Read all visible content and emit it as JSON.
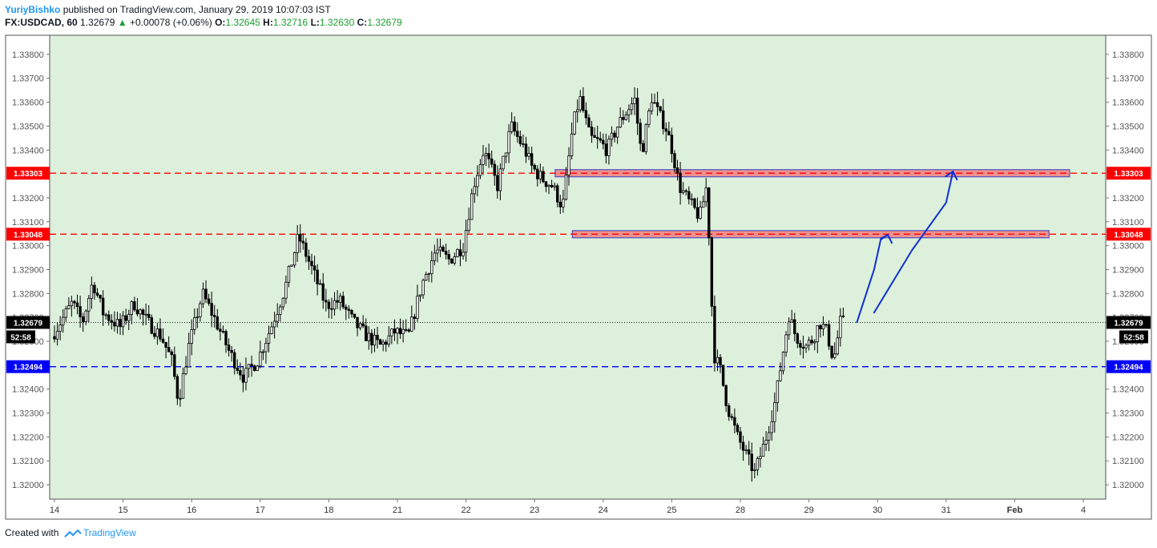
{
  "header": {
    "author": "YuriyBishko",
    "published_text": "published on TradingView.com, January 29, 2019 10:07:03 IST",
    "symbol": "FX:USDCAD, 60",
    "last": "1.32679",
    "up_arrow": "▲",
    "change": "+0.00078 (+0.06%)",
    "o_label": "O:",
    "o_value": "1.32645",
    "h_label": "H:",
    "h_value": "1.32716",
    "l_label": "L:",
    "l_value": "1.32630",
    "c_label": "C:",
    "c_value": "1.32679"
  },
  "footer": {
    "created_with": "Created with",
    "brand": "TradingView"
  },
  "colors": {
    "plot_bg": "#dcf0dc",
    "resistance": "#ff0000",
    "support": "#0000ff",
    "zone_fill": "#f08080",
    "zone_border": "#5050c0",
    "arrow": "#1030d0",
    "candle": "#000000"
  },
  "chart_data": {
    "type": "candlestick",
    "symbol": "FX:USDCAD",
    "interval": "60",
    "x_tick_labels": [
      "14",
      "15",
      "16",
      "17",
      "18",
      "21",
      "22",
      "23",
      "24",
      "25",
      "28",
      "29",
      "30",
      "31",
      "Feb",
      "4"
    ],
    "y_tick_labels": [
      "1.33800",
      "1.33700",
      "1.33600",
      "1.33500",
      "1.33400",
      "1.33300",
      "1.33200",
      "1.33100",
      "1.33000",
      "1.32900",
      "1.32800",
      "1.32700",
      "1.32600",
      "1.32500",
      "1.32400",
      "1.32300",
      "1.32200",
      "1.32100",
      "1.32000"
    ],
    "y_ticks": [
      1.338,
      1.337,
      1.336,
      1.335,
      1.334,
      1.333,
      1.332,
      1.331,
      1.33,
      1.329,
      1.328,
      1.327,
      1.326,
      1.325,
      1.324,
      1.323,
      1.322,
      1.321,
      1.32
    ],
    "ylim": [
      1.3194,
      1.3388
    ],
    "grid": false,
    "price_path": [
      [
        0.0,
        1.3262
      ],
      [
        0.3,
        1.3276
      ],
      [
        0.45,
        1.3268
      ],
      [
        0.6,
        1.3285
      ],
      [
        0.75,
        1.3272
      ],
      [
        1.0,
        1.3266
      ],
      [
        1.2,
        1.3276
      ],
      [
        1.4,
        1.3268
      ],
      [
        1.6,
        1.3262
      ],
      [
        1.75,
        1.3252
      ],
      [
        1.85,
        1.3235
      ],
      [
        2.0,
        1.3258
      ],
      [
        2.2,
        1.328
      ],
      [
        2.4,
        1.3268
      ],
      [
        2.6,
        1.3255
      ],
      [
        2.8,
        1.3245
      ],
      [
        3.0,
        1.3252
      ],
      [
        3.2,
        1.3266
      ],
      [
        3.4,
        1.3282
      ],
      [
        3.6,
        1.3304
      ],
      [
        3.8,
        1.329
      ],
      [
        4.0,
        1.3275
      ],
      [
        4.2,
        1.3277
      ],
      [
        4.4,
        1.3268
      ],
      [
        4.6,
        1.3262
      ],
      [
        4.8,
        1.3258
      ],
      [
        5.0,
        1.3264
      ],
      [
        5.2,
        1.3262
      ],
      [
        5.4,
        1.3284
      ],
      [
        5.6,
        1.3298
      ],
      [
        5.8,
        1.3294
      ],
      [
        6.0,
        1.33
      ],
      [
        6.15,
        1.3325
      ],
      [
        6.3,
        1.334
      ],
      [
        6.5,
        1.3325
      ],
      [
        6.7,
        1.335
      ],
      [
        6.9,
        1.334
      ],
      [
        7.0,
        1.3333
      ],
      [
        7.15,
        1.3328
      ],
      [
        7.3,
        1.3325
      ],
      [
        7.45,
        1.3316
      ],
      [
        7.6,
        1.335
      ],
      [
        7.7,
        1.3362
      ],
      [
        7.85,
        1.3345
      ],
      [
        8.0,
        1.3343
      ],
      [
        8.1,
        1.334
      ],
      [
        8.25,
        1.335
      ],
      [
        8.4,
        1.3357
      ],
      [
        8.5,
        1.3361
      ],
      [
        8.6,
        1.3338
      ],
      [
        8.75,
        1.3362
      ],
      [
        8.85,
        1.3355
      ],
      [
        8.95,
        1.335
      ],
      [
        9.05,
        1.334
      ],
      [
        9.15,
        1.3325
      ],
      [
        9.3,
        1.3318
      ],
      [
        9.45,
        1.3312
      ],
      [
        9.55,
        1.3325
      ],
      [
        9.6,
        1.3295
      ],
      [
        9.65,
        1.3255
      ],
      [
        9.75,
        1.3248
      ],
      [
        9.85,
        1.3233
      ],
      [
        10.0,
        1.322
      ],
      [
        10.15,
        1.3211
      ],
      [
        10.25,
        1.3205
      ],
      [
        10.4,
        1.3218
      ],
      [
        10.55,
        1.3235
      ],
      [
        10.65,
        1.3253
      ],
      [
        10.75,
        1.3271
      ],
      [
        10.85,
        1.3262
      ],
      [
        11.0,
        1.3258
      ],
      [
        11.1,
        1.3261
      ],
      [
        11.2,
        1.3268
      ],
      [
        11.3,
        1.3264
      ],
      [
        11.4,
        1.3252
      ],
      [
        11.5,
        1.3268
      ]
    ],
    "levels": [
      {
        "label": "1.33303",
        "value": 1.33303,
        "style": "dashed",
        "color": "#ff0000"
      },
      {
        "label": "1.33048",
        "value": 1.33048,
        "style": "dashed",
        "color": "#ff0000"
      },
      {
        "label": "1.32494",
        "value": 1.32494,
        "style": "dashed",
        "color": "#0000ff"
      }
    ],
    "current_price": {
      "label": "1.32679",
      "value": 1.32679,
      "countdown": "52:58"
    },
    "zones": [
      {
        "x_start": 7.3,
        "x_end": 14.8,
        "y_low": 1.33288,
        "y_high": 1.33318
      },
      {
        "x_start": 7.55,
        "x_end": 14.5,
        "y_low": 1.33033,
        "y_high": 1.33063
      }
    ],
    "arrows": [
      {
        "points": [
          [
            11.7,
            1.3268
          ],
          [
            11.95,
            1.329
          ],
          [
            12.05,
            1.3303
          ],
          [
            12.15,
            1.33045
          ]
        ]
      },
      {
        "points": [
          [
            11.95,
            1.3272
          ],
          [
            12.5,
            1.3298
          ],
          [
            13.0,
            1.3318
          ],
          [
            13.1,
            1.3331
          ]
        ]
      }
    ]
  }
}
